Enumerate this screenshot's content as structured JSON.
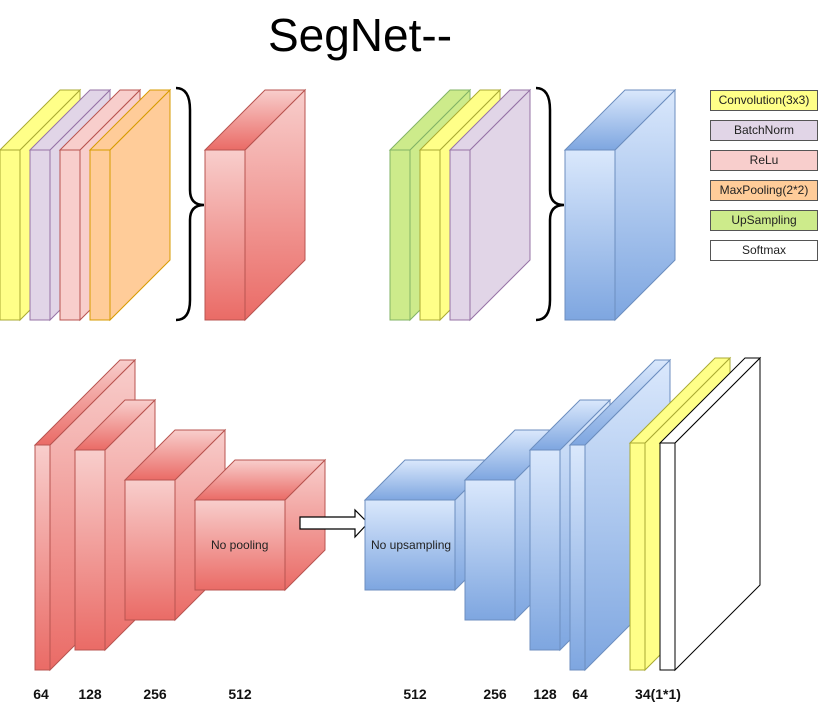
{
  "title": "SegNet--",
  "legend": [
    {
      "label": "Convolution(3x3)",
      "color": "#ffff88"
    },
    {
      "label": "BatchNorm",
      "color": "#e1d5e7"
    },
    {
      "label": "ReLu",
      "color": "#f8cecc"
    },
    {
      "label": "MaxPooling(2*2)",
      "color": "#ffcc99"
    },
    {
      "label": "UpSampling",
      "color": "#cdeb8b"
    },
    {
      "label": "Softmax",
      "color": "#ffffff"
    }
  ],
  "encoder_labels": [
    "64",
    "128",
    "256",
    "512"
  ],
  "decoder_labels": [
    "512",
    "256",
    "128",
    "64",
    "34(1*1)"
  ],
  "bottleneck_left_text": "No pooling",
  "bottleneck_right_text": "No upsampling",
  "colors": {
    "encoder_top": "#f8cecc",
    "encoder_bottom": "#ea6b66",
    "decoder_top": "#dae8fc",
    "decoder_bottom": "#7ea6e0",
    "stroke_red": "#b85450",
    "stroke_blue": "#6c8ebf"
  }
}
